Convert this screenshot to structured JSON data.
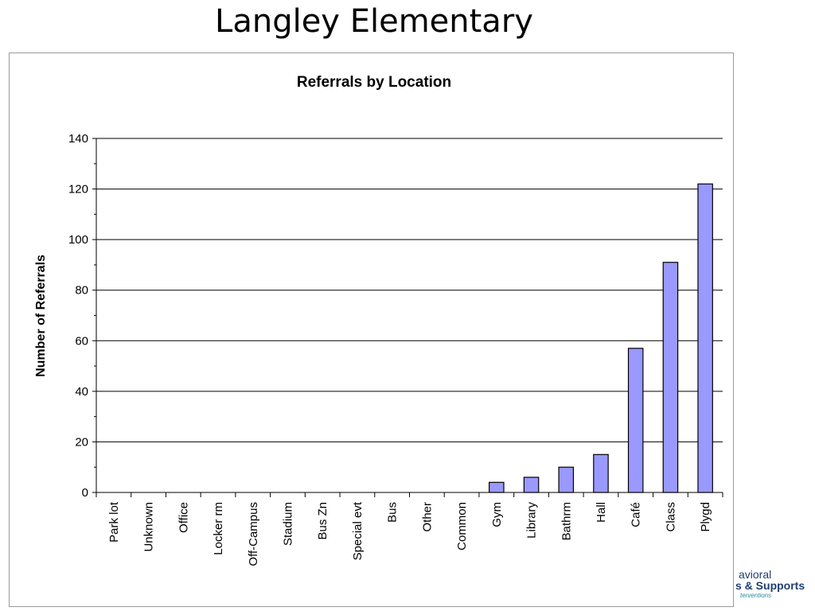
{
  "slide": {
    "title": "Langley Elementary"
  },
  "logo": {
    "line1": "avioral",
    "line2": "s & Supports",
    "line3": "terventions"
  },
  "chart_data": {
    "type": "bar",
    "title": "Referrals by Location",
    "xlabel": "",
    "ylabel": "Number of Referrals",
    "categories": [
      "Park lot",
      "Unknown",
      "Office",
      "Locker rm",
      "Off-Campus",
      "Stadium",
      "Bus Zn",
      "Special evt",
      "Bus",
      "Other",
      "Common",
      "Gym",
      "Library",
      "Bathrm",
      "Hall",
      "Café",
      "Class",
      "Plygd"
    ],
    "values": [
      0,
      0,
      0,
      0,
      0,
      0,
      0,
      0,
      0,
      0,
      0,
      4,
      6,
      10,
      15,
      57,
      91,
      122
    ],
    "ylim": [
      0,
      140
    ],
    "yticks": [
      0,
      20,
      40,
      60,
      80,
      100,
      120,
      140
    ],
    "grid": true,
    "bar_color": "#9999ff",
    "bar_edge_color": "#000000"
  }
}
